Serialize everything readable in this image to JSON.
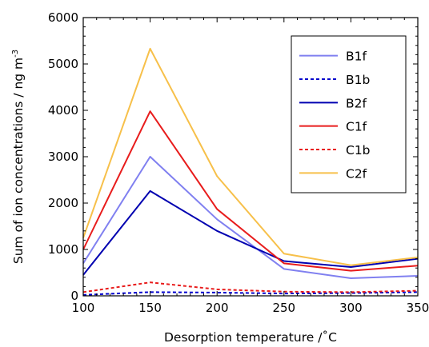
{
  "chart_data": {
    "type": "line",
    "xlabel": "Desorption temperature /˚C",
    "ylabel_main": "Sum of ion concentrations / ng m",
    "ylabel_sup": "-3",
    "xlim": [
      100,
      350
    ],
    "ylim": [
      0,
      6000
    ],
    "xticks": [
      100,
      150,
      200,
      250,
      300,
      350
    ],
    "yticks": [
      0,
      1000,
      2000,
      3000,
      4000,
      5000,
      6000
    ],
    "grid": false,
    "legend_position": "top-right",
    "x": [
      100,
      150,
      200,
      250,
      300,
      350
    ],
    "series": [
      {
        "name": "B1f",
        "color": "#8080f0",
        "dash": "solid",
        "values": [
          700,
          3000,
          1650,
          580,
          380,
          430
        ]
      },
      {
        "name": "B1b",
        "color": "#0000cc",
        "dash": "dashed",
        "values": [
          20,
          80,
          70,
          50,
          60,
          80
        ]
      },
      {
        "name": "B2f",
        "color": "#0000b0",
        "dash": "solid",
        "values": [
          450,
          2260,
          1400,
          750,
          620,
          800
        ]
      },
      {
        "name": "C1f",
        "color": "#e81c1c",
        "dash": "solid",
        "values": [
          1000,
          3980,
          1870,
          700,
          540,
          650
        ]
      },
      {
        "name": "C1b",
        "color": "#e81c1c",
        "dash": "dashed",
        "values": [
          80,
          290,
          140,
          90,
          80,
          110
        ]
      },
      {
        "name": "C2f",
        "color": "#f7c04a",
        "dash": "solid",
        "values": [
          1250,
          5330,
          2580,
          910,
          660,
          830
        ]
      }
    ]
  }
}
